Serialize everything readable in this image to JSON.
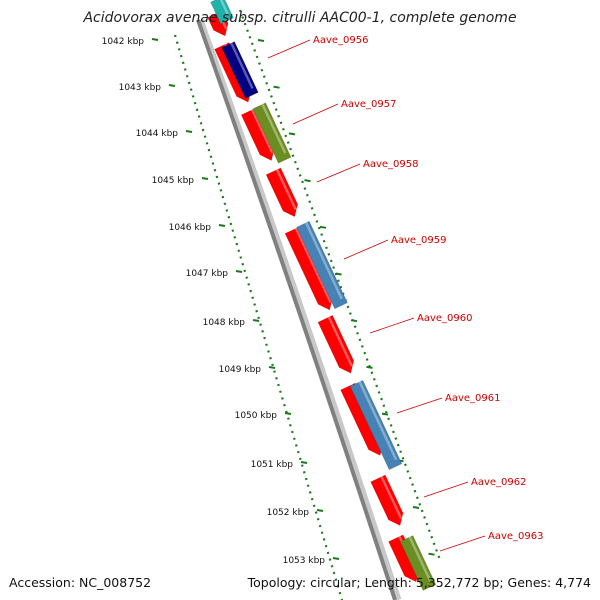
{
  "title": "Acidovorax avenae subsp. citrulli AAC00-1, complete genome",
  "accession": "Accession: NC_008752",
  "stats": "Topology: circular; Length: 5,352,772 bp; Genes: 4,774",
  "colors": {
    "backbone": "#808080",
    "ruler": "#1a7a1a",
    "gene_red": "#ff0000",
    "gene_blue": "#4682b4",
    "gene_olive": "#6b8e23",
    "gene_navy": "#000080",
    "gene_cyan": "#20b2aa",
    "label": "#cc0000"
  },
  "ticks": [
    {
      "label": "1042 kbp"
    },
    {
      "label": "1043 kbp"
    },
    {
      "label": "1044 kbp"
    },
    {
      "label": "1045 kbp"
    },
    {
      "label": "1046 kbp"
    },
    {
      "label": "1047 kbp"
    },
    {
      "label": "1048 kbp"
    },
    {
      "label": "1049 kbp"
    },
    {
      "label": "1050 kbp"
    },
    {
      "label": "1051 kbp"
    },
    {
      "label": "1052 kbp"
    },
    {
      "label": "1053 kbp"
    }
  ],
  "gene_labels": [
    {
      "text": "Aave_0956"
    },
    {
      "text": "Aave_0957"
    },
    {
      "text": "Aave_0958"
    },
    {
      "text": "Aave_0959"
    },
    {
      "text": "Aave_0960"
    },
    {
      "text": "Aave_0961"
    },
    {
      "text": "Aave_0962"
    },
    {
      "text": "Aave_0963"
    }
  ],
  "genes": [
    {
      "track": "red",
      "color": "gene_red"
    },
    {
      "track": "red",
      "color": "gene_red"
    },
    {
      "track": "red",
      "color": "gene_red"
    },
    {
      "track": "red",
      "color": "gene_red"
    },
    {
      "track": "red",
      "color": "gene_red"
    },
    {
      "track": "red",
      "color": "gene_red"
    },
    {
      "track": "red",
      "color": "gene_red"
    },
    {
      "track": "red",
      "color": "gene_red"
    },
    {
      "track": "red",
      "color": "gene_red"
    },
    {
      "track": "mid",
      "color": "gene_navy"
    },
    {
      "track": "mid",
      "color": "gene_olive"
    },
    {
      "track": "mid",
      "color": "gene_blue"
    },
    {
      "track": "mid",
      "color": "gene_blue"
    },
    {
      "track": "mid",
      "color": "gene_olive"
    },
    {
      "track": "mid",
      "color": "gene_cyan"
    }
  ]
}
